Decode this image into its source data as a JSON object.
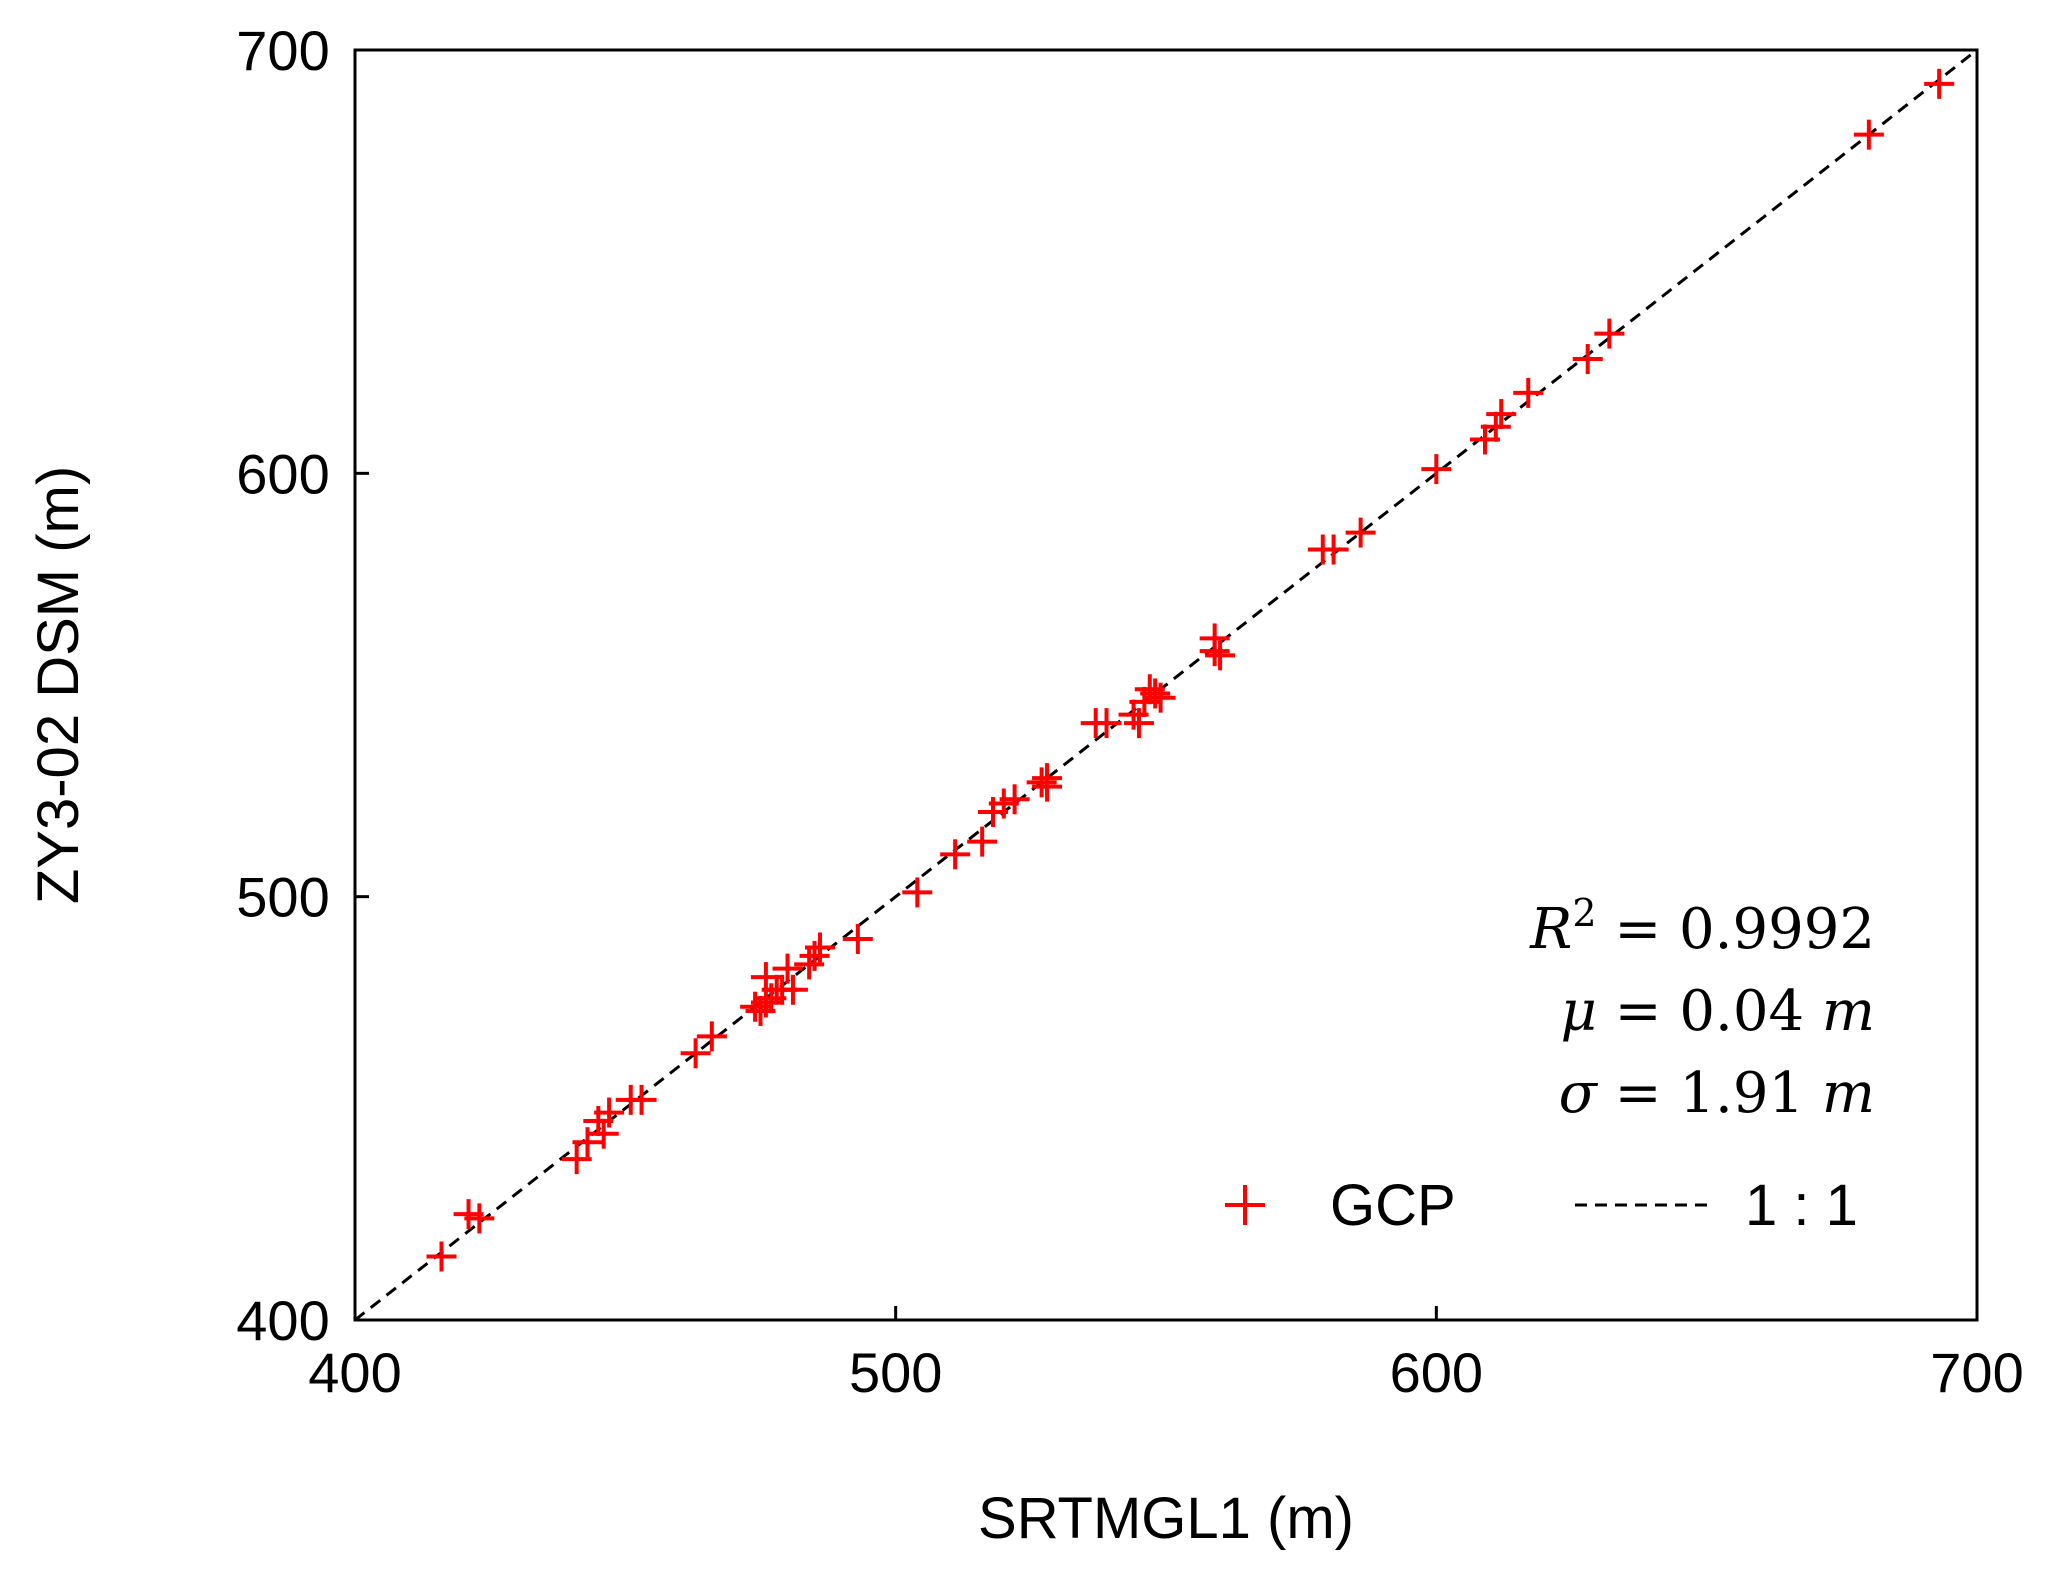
{
  "chart_data": {
    "type": "scatter",
    "xlabel": "SRTMGL1 (m)",
    "ylabel": "ZY3-02 DSM (m)",
    "xlim": [
      400,
      700
    ],
    "ylim": [
      400,
      700
    ],
    "xticks": [
      "400",
      "500",
      "600",
      "700"
    ],
    "yticks": [
      "400",
      "500",
      "600",
      "700"
    ],
    "series": [
      {
        "name": "GCP",
        "color": "#ff0000",
        "marker": "plus",
        "points": [
          [
            416,
            415
          ],
          [
            421,
            425
          ],
          [
            423,
            424
          ],
          [
            441,
            438
          ],
          [
            443,
            442
          ],
          [
            445,
            447
          ],
          [
            446,
            444
          ],
          [
            447,
            449
          ],
          [
            451,
            452
          ],
          [
            453,
            452
          ],
          [
            463,
            463
          ],
          [
            466,
            467
          ],
          [
            474,
            474
          ],
          [
            475,
            473
          ],
          [
            476,
            475
          ],
          [
            476,
            481
          ],
          [
            477,
            476
          ],
          [
            478,
            478
          ],
          [
            479,
            478
          ],
          [
            480,
            483
          ],
          [
            481,
            478
          ],
          [
            484,
            484
          ],
          [
            485,
            486
          ],
          [
            486,
            488
          ],
          [
            493,
            490
          ],
          [
            504,
            501
          ],
          [
            511,
            510
          ],
          [
            516,
            513
          ],
          [
            518,
            520
          ],
          [
            520,
            522
          ],
          [
            522,
            523
          ],
          [
            527,
            527
          ],
          [
            528,
            528
          ],
          [
            528,
            526
          ],
          [
            537,
            541
          ],
          [
            539,
            541
          ],
          [
            544,
            543
          ],
          [
            545,
            541
          ],
          [
            546,
            546
          ],
          [
            547,
            549
          ],
          [
            548,
            548
          ],
          [
            549,
            547
          ],
          [
            559,
            561
          ],
          [
            559,
            558
          ],
          [
            560,
            557
          ],
          [
            579,
            582
          ],
          [
            581,
            582
          ],
          [
            586,
            586
          ],
          [
            600,
            601
          ],
          [
            609,
            608
          ],
          [
            611,
            611
          ],
          [
            612,
            614
          ],
          [
            617,
            619
          ],
          [
            628,
            627
          ],
          [
            632,
            633
          ],
          [
            680,
            680
          ],
          [
            693,
            692
          ]
        ]
      },
      {
        "name": "1 : 1",
        "color": "#000000",
        "style": "dashed",
        "x": [
          400,
          700
        ],
        "y": [
          400,
          700
        ]
      }
    ],
    "annotations": {
      "r2": "0.9992",
      "mu": "0.04",
      "sigma": "1.91",
      "unit": "m"
    },
    "legend": {
      "placement": "bottom-right",
      "entries": [
        "GCP",
        "1 : 1"
      ]
    }
  }
}
